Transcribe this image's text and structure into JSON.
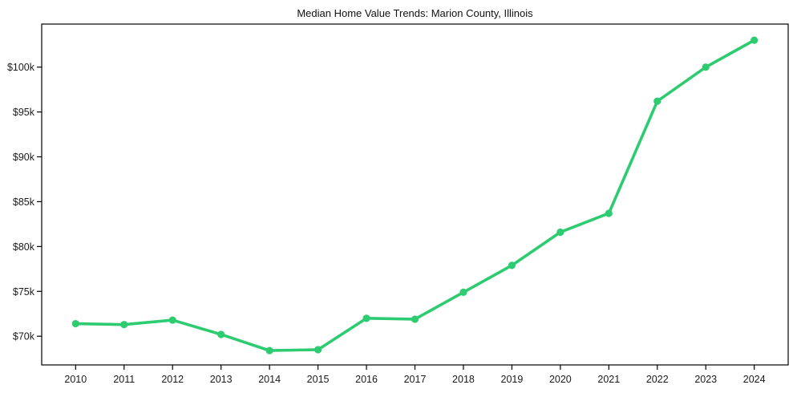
{
  "chart": {
    "title": "Median Home Value Trends: Marion County, Illinois"
  },
  "chart_data": {
    "type": "line",
    "title": "Median Home Value Trends: Marion County, Illinois",
    "x": [
      2010,
      2011,
      2012,
      2013,
      2014,
      2015,
      2016,
      2017,
      2018,
      2019,
      2020,
      2021,
      2022,
      2023,
      2024
    ],
    "series": [
      {
        "name": "median-home-value",
        "values": [
          71400,
          71300,
          71800,
          70200,
          68400,
          68500,
          72000,
          71900,
          74900,
          77900,
          81600,
          83700,
          96200,
          100000,
          103000
        ]
      }
    ],
    "xlabel": "",
    "ylabel": "",
    "xlim": [
      2009.3,
      2024.7
    ],
    "ylim": [
      66800,
      104800
    ],
    "xtick_labels": [
      "2010",
      "2011",
      "2012",
      "2013",
      "2014",
      "2015",
      "2016",
      "2017",
      "2018",
      "2019",
      "2020",
      "2021",
      "2022",
      "2023",
      "2024"
    ],
    "ytick_values": [
      70000,
      75000,
      80000,
      85000,
      90000,
      95000,
      100000
    ],
    "ytick_labels": [
      "$70k",
      "$75k",
      "$80k",
      "$85k",
      "$90k",
      "$95k",
      "$100k"
    ],
    "grid": false,
    "legend": "none",
    "line_color": "#2ecc71",
    "marker": "circle",
    "axis_color": "#000000",
    "text_color": "#1a1a1a",
    "background": "#ffffff"
  }
}
